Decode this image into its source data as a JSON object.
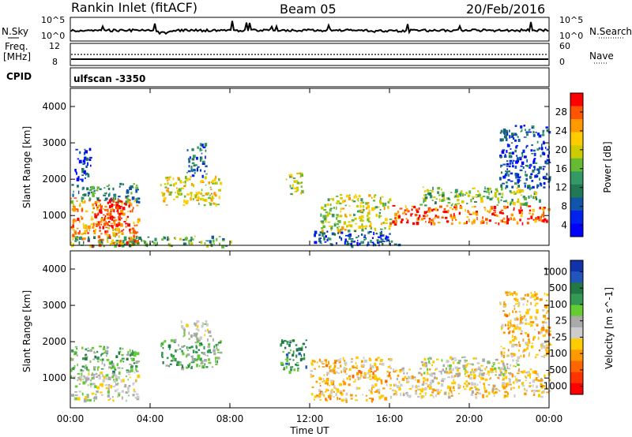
{
  "header": {
    "station": "Rankin Inlet (fitACF)",
    "beam": "Beam 05",
    "date": "20/Feb/2016"
  },
  "noise_panel": {
    "left_label": "N.Sky",
    "right_label": "N.Search",
    "left_ticks": [
      "10^5",
      "10^0"
    ],
    "right_ticks": [
      "10^5",
      "10^0"
    ]
  },
  "freq_panel": {
    "left_label_1": "Freq.",
    "left_label_2": "[MHz]",
    "left_ticks": [
      "12",
      "8"
    ],
    "right_label": "Nave",
    "right_ticks": [
      "60",
      "0"
    ]
  },
  "cpid_panel": {
    "label": "CPID",
    "program": "ulfscan -3350"
  },
  "chart_data": [
    {
      "type": "heatmap",
      "title": "",
      "parameter": "Power",
      "xlabel": "Time UT",
      "ylabel": "Slant Range [km]",
      "x_ticks": [
        "00:00",
        "04:00",
        "08:00",
        "12:00",
        "16:00",
        "20:00",
        "00:00"
      ],
      "xlim_hours": [
        0,
        24
      ],
      "ylim": [
        180,
        4500
      ],
      "y_ticks": [
        1000,
        2000,
        3000,
        4000
      ],
      "colorbar": {
        "label": "Power [dB]",
        "ticks": [
          "28",
          "24",
          "20",
          "16",
          "12",
          "8",
          "4"
        ],
        "colors": [
          "#ff0000",
          "#ff5500",
          "#ff9900",
          "#ffcc00",
          "#cccc00",
          "#66bb33",
          "#339966",
          "#227755",
          "#1155aa",
          "#0022ee",
          "#0000ff"
        ]
      },
      "echo_regions": [
        {
          "t0": 0.0,
          "t1": 3.4,
          "r0": 180,
          "r1": 1500,
          "level": 24
        },
        {
          "t0": 0.0,
          "t1": 3.4,
          "r0": 1400,
          "r1": 1900,
          "level": 12
        },
        {
          "t0": 1.2,
          "t1": 2.8,
          "r0": 700,
          "r1": 1500,
          "level": 28
        },
        {
          "t0": 4.5,
          "t1": 7.5,
          "r0": 1300,
          "r1": 2100,
          "level": 20
        },
        {
          "t0": 5.8,
          "t1": 6.8,
          "r0": 2100,
          "r1": 3000,
          "level": 10
        },
        {
          "t0": 0.0,
          "t1": 8.0,
          "r0": 180,
          "r1": 450,
          "level": 14
        },
        {
          "t0": 0.2,
          "t1": 1.0,
          "r0": 2000,
          "r1": 2900,
          "level": 6
        },
        {
          "t0": 10.8,
          "t1": 11.6,
          "r0": 1600,
          "r1": 2200,
          "level": 18
        },
        {
          "t0": 12.5,
          "t1": 16.0,
          "r0": 600,
          "r1": 1600,
          "level": 18
        },
        {
          "t0": 12.0,
          "t1": 16.5,
          "r0": 180,
          "r1": 600,
          "level": 8
        },
        {
          "t0": 16.0,
          "t1": 24.0,
          "r0": 800,
          "r1": 1300,
          "level": 26
        },
        {
          "t0": 17.5,
          "t1": 23.5,
          "r0": 1300,
          "r1": 1800,
          "level": 16
        },
        {
          "t0": 21.5,
          "t1": 24.0,
          "r0": 1800,
          "r1": 3500,
          "level": 8
        }
      ]
    },
    {
      "type": "heatmap",
      "title": "",
      "parameter": "Velocity",
      "xlabel": "Time UT",
      "ylabel": "Slant Range [km]",
      "x_ticks": [
        "00:00",
        "04:00",
        "08:00",
        "12:00",
        "16:00",
        "20:00",
        "00:00"
      ],
      "xlim_hours": [
        0,
        24
      ],
      "ylim": [
        180,
        4500
      ],
      "y_ticks": [
        1000,
        2000,
        3000,
        4000
      ],
      "colorbar": {
        "label": "Velocity [m s^-1]",
        "ticks": [
          "1000",
          "500",
          "100",
          "25",
          "-25",
          "-100",
          "-500",
          "-1000"
        ],
        "colors": [
          "#1133aa",
          "#2255bb",
          "#227744",
          "#339955",
          "#66cc33",
          "#aaaaaa",
          "#cccccc",
          "#ffcc00",
          "#ff9900",
          "#ff6600",
          "#ff3300",
          "#ff0000"
        ]
      },
      "echo_regions": [
        {
          "t0": 0.0,
          "t1": 3.4,
          "r0": 1200,
          "r1": 1900,
          "level": 300
        },
        {
          "t0": 0.0,
          "t1": 3.4,
          "r0": 400,
          "r1": 1200,
          "level": 0
        },
        {
          "t0": 4.5,
          "t1": 7.5,
          "r0": 1300,
          "r1": 2100,
          "level": 300
        },
        {
          "t0": 5.5,
          "t1": 7.0,
          "r0": 2100,
          "r1": 2600,
          "level": 0
        },
        {
          "t0": 10.5,
          "t1": 11.8,
          "r0": 1200,
          "r1": 2100,
          "level": 500
        },
        {
          "t0": 12.0,
          "t1": 16.0,
          "r0": 400,
          "r1": 1600,
          "level": -300
        },
        {
          "t0": 16.0,
          "t1": 24.0,
          "r0": 500,
          "r1": 1300,
          "level": -200
        },
        {
          "t0": 17.5,
          "t1": 22.5,
          "r0": 1100,
          "r1": 1600,
          "level": 0
        },
        {
          "t0": 21.5,
          "t1": 24.0,
          "r0": 1600,
          "r1": 3400,
          "level": -300
        }
      ]
    }
  ]
}
